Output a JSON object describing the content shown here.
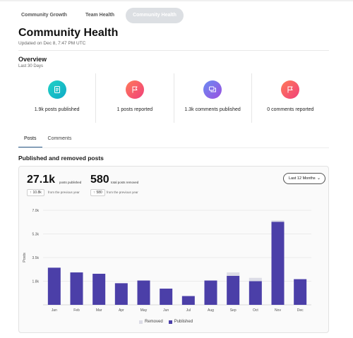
{
  "colors": {
    "published": "#4b3fa8",
    "removed": "#dcdce6",
    "grid": "#e6e6e6",
    "teal": "#18bcc2",
    "coral": "#f04f6b",
    "purple": "#7e5ae8"
  },
  "top_tabs": [
    {
      "label": "Community Growth",
      "active": false
    },
    {
      "label": "Team Health",
      "active": false
    },
    {
      "label": "Community Health",
      "active": true
    }
  ],
  "header": {
    "title": "Community Health",
    "updated": "Updated on Dec 8, 7:47 PM UTC"
  },
  "overview": {
    "title": "Overview",
    "subtitle": "Last 30 Days",
    "stats": [
      {
        "label": "1.9k posts published",
        "icon": "document-icon"
      },
      {
        "label": "1 posts reported",
        "icon": "flag-icon"
      },
      {
        "label": "1.3k comments published",
        "icon": "comments-icon"
      },
      {
        "label": "0 comments reported",
        "icon": "flag-icon"
      }
    ]
  },
  "sub_tabs": [
    {
      "label": "Posts",
      "active": true
    },
    {
      "label": "Comments",
      "active": false
    }
  ],
  "section": {
    "title": "Published and removed posts"
  },
  "summary": {
    "published_value": "27.1k",
    "published_caption": "posts published",
    "published_delta": "10.8k",
    "removed_value": "580",
    "removed_caption": "total posts removed",
    "removed_delta": "580",
    "delta_caption": "from the previous year",
    "range_label": "Last 12 Months"
  },
  "chart_data": {
    "type": "bar",
    "stacked": true,
    "categories": [
      "Jan",
      "Feb",
      "Mar",
      "Apr",
      "May",
      "Jun",
      "Jul",
      "Aug",
      "Sep",
      "Oct",
      "Nov",
      "Dec"
    ],
    "series": [
      {
        "name": "Published",
        "values": [
          2750,
          2400,
          2300,
          1600,
          1800,
          1200,
          650,
          1800,
          2150,
          1750,
          6150,
          1900
        ]
      },
      {
        "name": "Removed",
        "values": [
          0,
          0,
          0,
          0,
          0,
          0,
          0,
          0,
          250,
          250,
          100,
          0
        ]
      }
    ],
    "ylabel": "Posts",
    "yticks": [
      "1.8k",
      "3.5k",
      "5.3k",
      "7.0k"
    ],
    "ytick_values": [
      1750,
      3500,
      5250,
      7000
    ],
    "ylim": [
      0,
      7000
    ],
    "grid": true,
    "legend_position": "bottom-center",
    "legend": [
      "Removed",
      "Published"
    ]
  }
}
